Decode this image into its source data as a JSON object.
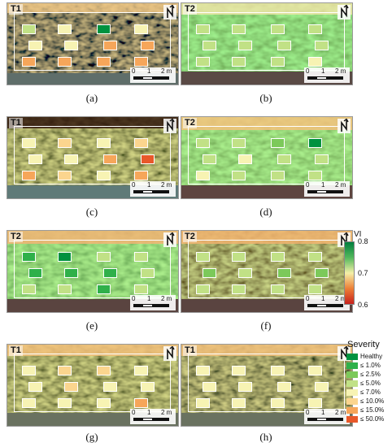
{
  "panels": [
    {
      "id": "a",
      "period": "T1",
      "caption": "(a)",
      "scale": [
        "0",
        "1",
        "2 m"
      ],
      "pal": "red"
    },
    {
      "id": "b",
      "period": "T2",
      "caption": "(b)",
      "scale": [
        "0",
        "1",
        "2 m"
      ],
      "pal": "green"
    },
    {
      "id": "c",
      "period": "T1",
      "caption": "(c)",
      "scale": [
        "0",
        "1",
        "2 m"
      ],
      "pal": "red"
    },
    {
      "id": "d",
      "period": "T2",
      "caption": "(d)",
      "scale": [
        "0",
        "1",
        "2 m"
      ],
      "pal": "green"
    },
    {
      "id": "e",
      "period": "T2",
      "caption": "(e)",
      "scale": [
        "0",
        "1",
        "2 m"
      ],
      "pal": "mixed"
    },
    {
      "id": "f",
      "period": "T2",
      "caption": "(f)",
      "scale": [
        "0",
        "1",
        "2 m"
      ],
      "pal": "mixed"
    },
    {
      "id": "g",
      "period": "T1",
      "caption": "(g)",
      "scale": [
        "0",
        "1",
        "2 m"
      ],
      "pal": "red"
    },
    {
      "id": "h",
      "period": "T1",
      "caption": "(h)",
      "scale": [
        "0",
        "1",
        "2 m"
      ],
      "pal": "red"
    }
  ],
  "vi_legend": {
    "title": "VI",
    "labels": [
      "0.8",
      "0.7",
      "0.6"
    ],
    "colors": [
      "#007e3d",
      "#53b85c",
      "#f4efa8",
      "#ec7f37",
      "#c8211d"
    ]
  },
  "severity_legend": {
    "title": "Severity",
    "items": [
      {
        "label": "Healthy",
        "color": "#00923f"
      },
      {
        "label": "≤ 1.0%",
        "color": "#2fb04a"
      },
      {
        "label": "≤ 2.5%",
        "color": "#7cc95a"
      },
      {
        "label": "≤ 5.0%",
        "color": "#c1e186"
      },
      {
        "label": "≤ 7.0%",
        "color": "#f7f3b3"
      },
      {
        "label": "≤ 10.0%",
        "color": "#fbd58e"
      },
      {
        "label": "≤ 15.0%",
        "color": "#f6a65a"
      },
      {
        "label": "≤ 50.0%",
        "color": "#e8582a"
      }
    ]
  },
  "tiles": {
    "a": [
      3,
      4,
      0,
      4,
      4,
      4,
      6,
      6,
      6,
      6,
      6,
      6
    ],
    "b": [
      3,
      3,
      3,
      3,
      3,
      3,
      3,
      3,
      3,
      3,
      3,
      4
    ],
    "c": [
      4,
      5,
      4,
      5,
      4,
      4,
      6,
      7,
      6,
      5,
      4,
      6
    ],
    "d": [
      3,
      3,
      2,
      0,
      3,
      4,
      3,
      3,
      4,
      3,
      3,
      3
    ],
    "e": [
      1,
      0,
      3,
      3,
      1,
      1,
      1,
      3,
      3,
      3,
      1,
      3
    ],
    "f": [
      3,
      3,
      3,
      3,
      2,
      3,
      2,
      2,
      3,
      3,
      3,
      3
    ],
    "g": [
      4,
      5,
      5,
      4,
      4,
      5,
      4,
      4,
      4,
      4,
      4,
      6
    ],
    "h": [
      4,
      4,
      4,
      4,
      4,
      4,
      4,
      4,
      4,
      4,
      4,
      4
    ]
  }
}
